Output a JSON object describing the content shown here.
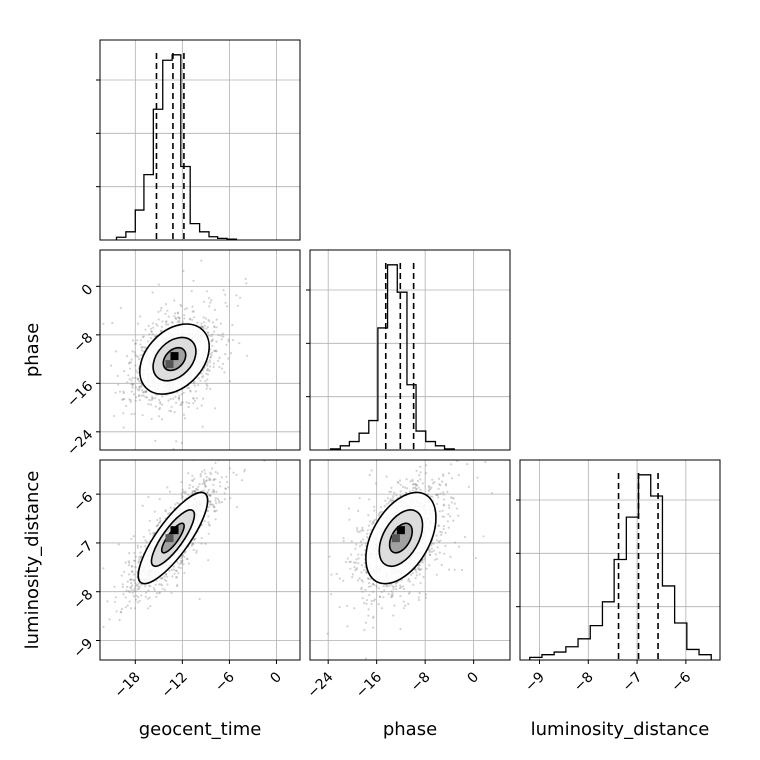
{
  "chart_data": {
    "type": "corner",
    "parameters": [
      "geocent_time",
      "phase",
      "luminosity_distance"
    ],
    "axes": {
      "geocent_time": {
        "label": "geocent_time",
        "range": [
          -22.5,
          3.0
        ],
        "ticks": [
          -18,
          -12,
          -6,
          0
        ],
        "tick_labels": [
          "−18",
          "−12",
          "−6",
          "0"
        ]
      },
      "phase": {
        "label": "phase",
        "range": [
          -27.0,
          6.0
        ],
        "ticks": [
          -24,
          -16,
          -8,
          0
        ],
        "tick_labels": [
          "−24",
          "−16",
          "−8",
          "0"
        ]
      },
      "luminosity_distance": {
        "label": "luminosity_distance",
        "range": [
          -9.4,
          -5.3
        ],
        "ticks": [
          -9,
          -8,
          -7,
          -6
        ],
        "tick_labels": [
          "−9",
          "−8",
          "−7",
          "−6"
        ]
      }
    },
    "histograms": [
      {
        "param": "geocent_time",
        "quantiles": [
          -15.3,
          -13.2,
          -11.8
        ],
        "bins": [
          [
            -20.4,
            -19.2,
            1
          ],
          [
            -19.2,
            -18.0,
            3
          ],
          [
            -18.0,
            -16.9,
            11
          ],
          [
            -16.9,
            -15.7,
            24
          ],
          [
            -15.7,
            -14.5,
            48
          ],
          [
            -14.5,
            -13.3,
            66
          ],
          [
            -13.3,
            -12.2,
            68
          ],
          [
            -12.2,
            -11.0,
            27
          ],
          [
            -11.0,
            -9.8,
            6
          ],
          [
            -9.8,
            -8.6,
            3
          ],
          [
            -8.6,
            -7.5,
            1.2
          ],
          [
            -7.5,
            -6.3,
            0.6
          ],
          [
            -6.3,
            -5.1,
            0.3
          ]
        ],
        "ymax": 68
      },
      {
        "param": "phase",
        "quantiles": [
          -14.5,
          -12.1,
          -9.9
        ],
        "bins": [
          [
            -23.6,
            -22.0,
            0.5
          ],
          [
            -22.0,
            -20.5,
            2
          ],
          [
            -20.5,
            -18.9,
            4
          ],
          [
            -18.9,
            -17.3,
            8
          ],
          [
            -17.3,
            -15.8,
            14
          ],
          [
            -15.8,
            -14.2,
            58
          ],
          [
            -14.2,
            -12.6,
            88
          ],
          [
            -12.6,
            -11.0,
            75
          ],
          [
            -11.0,
            -9.5,
            31
          ],
          [
            -9.5,
            -7.9,
            9
          ],
          [
            -7.9,
            -6.3,
            4
          ],
          [
            -6.3,
            -4.8,
            2
          ],
          [
            -4.8,
            -3.2,
            0.5
          ]
        ],
        "ymax": 88
      },
      {
        "param": "luminosity_distance",
        "quantiles": [
          -7.38,
          -6.97,
          -6.57
        ],
        "bins": [
          [
            -9.2,
            -8.95,
            1
          ],
          [
            -8.95,
            -8.7,
            2
          ],
          [
            -8.7,
            -8.46,
            3
          ],
          [
            -8.46,
            -8.21,
            5
          ],
          [
            -8.21,
            -7.96,
            8
          ],
          [
            -7.96,
            -7.71,
            13
          ],
          [
            -7.71,
            -7.47,
            22
          ],
          [
            -7.47,
            -7.22,
            38
          ],
          [
            -7.22,
            -6.97,
            54
          ],
          [
            -6.97,
            -6.72,
            70
          ],
          [
            -6.72,
            -6.48,
            62
          ],
          [
            -6.48,
            -6.23,
            28
          ],
          [
            -6.23,
            -5.98,
            14
          ],
          [
            -5.98,
            -5.73,
            4
          ],
          [
            -5.73,
            -5.48,
            2
          ]
        ],
        "ymax": 70
      }
    ],
    "scatter_panels": [
      {
        "x": "geocent_time",
        "y": "phase",
        "center": [
          -13.0,
          -12.0
        ],
        "contour_levels": 3,
        "density_peak": [
          -13.0,
          -12.0
        ]
      },
      {
        "x": "geocent_time",
        "y": "luminosity_distance",
        "center": [
          -13.2,
          -6.9
        ],
        "contour_levels": 3,
        "density_peak": [
          -13.0,
          -6.8
        ]
      },
      {
        "x": "phase",
        "y": "luminosity_distance",
        "center": [
          -12.0,
          -6.9
        ],
        "contour_levels": 3,
        "density_peak": [
          -12.0,
          -6.8
        ]
      }
    ],
    "grid": true,
    "colors": {
      "line": "#000000",
      "points": "#7f7f7f",
      "grid": "#b0b0b0"
    }
  }
}
